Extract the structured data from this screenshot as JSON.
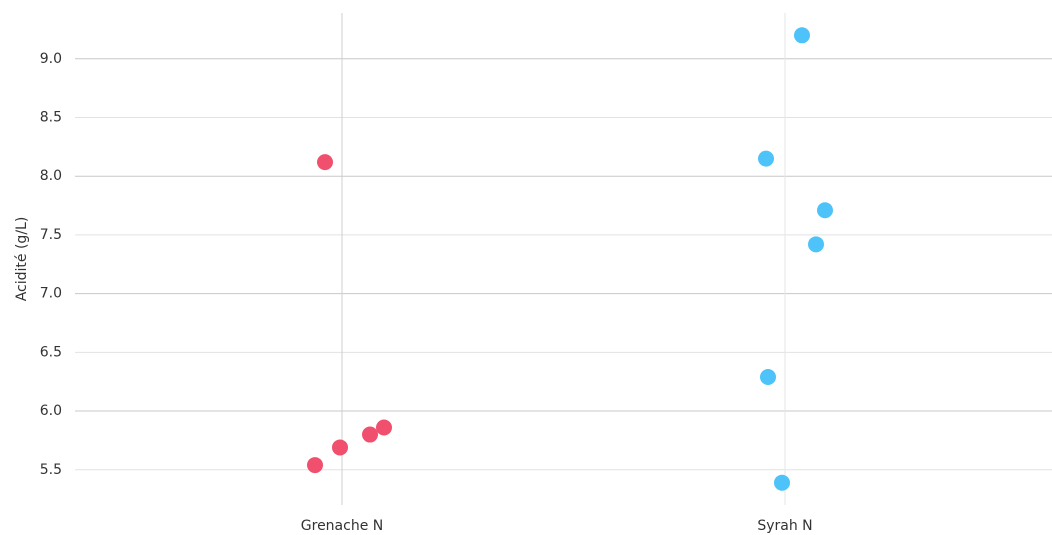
{
  "chart_data": {
    "type": "strip",
    "y_label": "Acidité (g/L)",
    "categories": [
      "Grenache N",
      "Syrah N"
    ],
    "series": [
      {
        "color": "#f0506e",
        "values": [
          8.12,
          5.54,
          5.69,
          5.8,
          5.86
        ]
      },
      {
        "color": "#4dc3fa",
        "values": [
          9.2,
          8.15,
          7.71,
          7.42,
          6.29,
          5.39
        ]
      }
    ],
    "ylim": [
      5.2,
      9.39
    ],
    "yticks": [
      {
        "value": 5.5,
        "label": "5.5"
      },
      {
        "value": 6,
        "label": "6.0"
      },
      {
        "value": 6.5,
        "label": "6.5"
      },
      {
        "value": 7,
        "label": "7.0"
      },
      {
        "value": 7.5,
        "label": "7.5"
      },
      {
        "value": 8,
        "label": "8.0"
      },
      {
        "value": 8.5,
        "label": "8.5"
      },
      {
        "value": 9,
        "label": "9.0"
      }
    ],
    "grid": true
  }
}
